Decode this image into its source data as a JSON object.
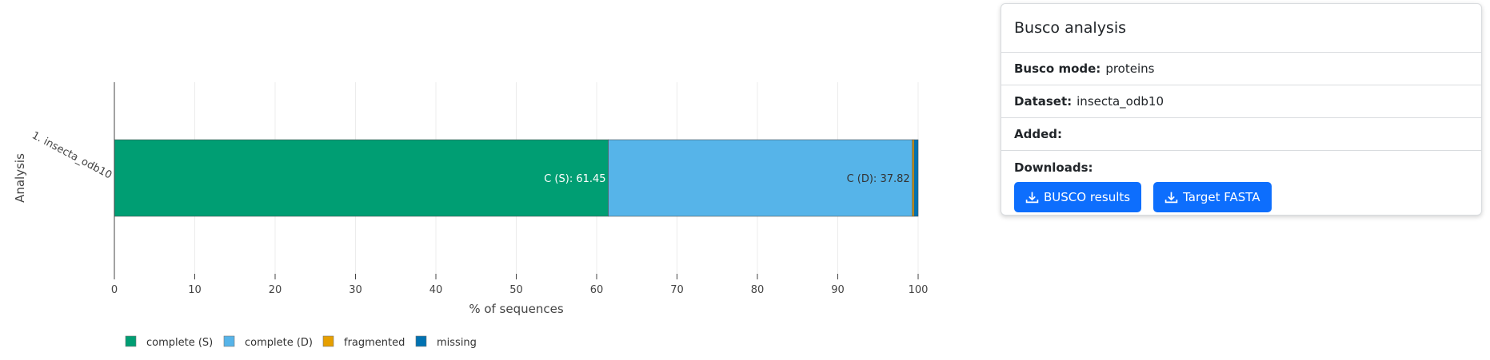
{
  "chart_data": {
    "type": "bar",
    "orientation": "horizontal",
    "stacked": true,
    "categories": [
      "1. insecta_odb10"
    ],
    "series": [
      {
        "name": "complete (S)",
        "values": [
          61.45
        ],
        "color": "#009E73",
        "label": "C (S): 61.45"
      },
      {
        "name": "complete (D)",
        "values": [
          37.82
        ],
        "color": "#56B4E9",
        "label": "C (D): 37.82"
      },
      {
        "name": "fragmented",
        "values": [
          0.22
        ],
        "color": "#E69F00",
        "label": ""
      },
      {
        "name": "missing",
        "values": [
          0.51
        ],
        "color": "#0072B2",
        "label": ""
      }
    ],
    "xlabel": "% of sequences",
    "ylabel": "Analysis",
    "xlim": [
      0,
      100
    ],
    "xticks": [
      0,
      10,
      20,
      30,
      40,
      50,
      60,
      70,
      80,
      90,
      100
    ],
    "grid": true,
    "legend": "bottom-left"
  },
  "panel": {
    "title": "Busco analysis",
    "mode_label": "Busco mode:",
    "mode_value": "proteins",
    "dataset_label": "Dataset:",
    "dataset_value": "insecta_odb10",
    "added_label": "Added:",
    "added_value": "",
    "downloads_label": "Downloads:",
    "busco_button": "BUSCO results",
    "fasta_button": "Target FASTA",
    "button_color": "#0d6efd",
    "button_icon": "download-icon"
  }
}
